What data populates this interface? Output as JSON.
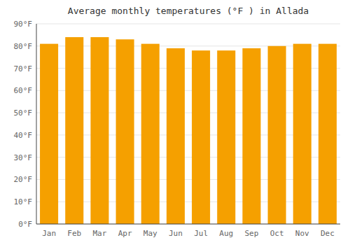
{
  "chart_data": {
    "type": "bar",
    "title": "Average monthly temperatures (°F ) in Allada",
    "categories": [
      "Jan",
      "Feb",
      "Mar",
      "Apr",
      "May",
      "Jun",
      "Jul",
      "Aug",
      "Sep",
      "Oct",
      "Nov",
      "Dec"
    ],
    "values": [
      81,
      84,
      84,
      83,
      81,
      79,
      78,
      78,
      79,
      80,
      81,
      81
    ],
    "color": "#F5A000",
    "ylim": [
      0,
      90
    ],
    "yticks": [
      {
        "value": 0,
        "label": "0°F"
      },
      {
        "value": 10,
        "label": "10°F"
      },
      {
        "value": 20,
        "label": "20°F"
      },
      {
        "value": 30,
        "label": "30°F"
      },
      {
        "value": 40,
        "label": "40°F"
      },
      {
        "value": 50,
        "label": "50°F"
      },
      {
        "value": 60,
        "label": "60°F"
      },
      {
        "value": 70,
        "label": "70°F"
      },
      {
        "value": 80,
        "label": "80°F"
      },
      {
        "value": 90,
        "label": "90°F"
      }
    ],
    "grid": true
  }
}
